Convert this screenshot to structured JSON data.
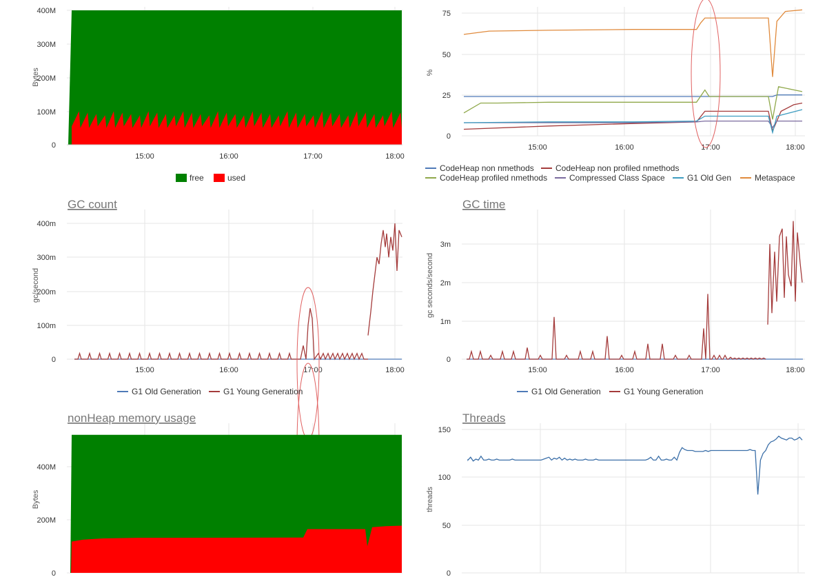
{
  "charts": [
    {
      "id": "heap",
      "title": "",
      "ylabel": "Bytes",
      "yticks": [
        "0",
        "100M",
        "200M",
        "300M",
        "400M"
      ],
      "xticks": [
        "15:00",
        "16:00",
        "17:00",
        "18:00"
      ],
      "legend": [
        {
          "name": "free",
          "color": "#008000"
        },
        {
          "name": "used",
          "color": "#ff0000"
        }
      ]
    },
    {
      "id": "pools",
      "title": "",
      "ylabel": "%",
      "yticks": [
        "0",
        "25",
        "50",
        "75"
      ],
      "xticks": [
        "15:00",
        "16:00",
        "17:00",
        "18:00"
      ],
      "legend": [
        {
          "name": "CodeHeap non nmethods",
          "color": "#4e79b7"
        },
        {
          "name": "CodeHeap non profiled nmethods",
          "color": "#a43b3b"
        },
        {
          "name": "CodeHeap profiled nmethods",
          "color": "#8fa84a"
        },
        {
          "name": "Compressed Class Space",
          "color": "#7a6a9e"
        },
        {
          "name": "G1 Old Gen",
          "color": "#3d9cc0"
        },
        {
          "name": "Metaspace",
          "color": "#e08a3c"
        }
      ]
    },
    {
      "id": "gccount",
      "title": "GC count",
      "ylabel": "gc/second",
      "yticks": [
        "0",
        "100m",
        "200m",
        "300m",
        "400m"
      ],
      "xticks": [
        "15:00",
        "16:00",
        "17:00",
        "18:00"
      ],
      "legend": [
        {
          "name": "G1 Old Generation",
          "color": "#4e79b7"
        },
        {
          "name": "G1 Young Generation",
          "color": "#a43b3b"
        }
      ]
    },
    {
      "id": "gctime",
      "title": "GC time",
      "ylabel": "gc seconds/second",
      "yticks": [
        "0",
        "1m",
        "2m",
        "3m"
      ],
      "xticks": [
        "15:00",
        "16:00",
        "17:00",
        "18:00"
      ],
      "legend": [
        {
          "name": "G1 Old Generation",
          "color": "#4e79b7"
        },
        {
          "name": "G1 Young Generation",
          "color": "#a43b3b"
        }
      ]
    },
    {
      "id": "nonheap",
      "title": "nonHeap memory usage",
      "ylabel": "Bytes",
      "yticks": [
        "0",
        "200M",
        "400M"
      ],
      "xticks": [],
      "legend": []
    },
    {
      "id": "threads",
      "title": "Threads",
      "ylabel": "threads",
      "yticks": [
        "0",
        "50",
        "100",
        "150"
      ],
      "xticks": [],
      "legend": []
    }
  ],
  "chart_data": [
    {
      "type": "area",
      "ylabel": "Bytes",
      "ylim": [
        0,
        400000000
      ],
      "x_range": [
        "14:07",
        "18:05"
      ],
      "series": [
        {
          "name": "free",
          "color": "#008000",
          "total": 400000000
        },
        {
          "name": "used",
          "color": "#ff0000",
          "pattern": "sawtooth",
          "min": 50000000,
          "max": 100000000
        }
      ]
    },
    {
      "type": "line",
      "ylabel": "%",
      "ylim": [
        0,
        80
      ],
      "series": [
        {
          "name": "CodeHeap non nmethods",
          "color": "#4e79b7",
          "points": [
            [
              0,
              24
            ],
            [
              1,
              24
            ],
            [
              2,
              24
            ],
            [
              3,
              24
            ],
            [
              3.65,
              24
            ],
            [
              3.7,
              25
            ],
            [
              4,
              25
            ]
          ]
        },
        {
          "name": "CodeHeap non profiled nmethods",
          "color": "#a43b3b",
          "points": [
            [
              0,
              4
            ],
            [
              1,
              6
            ],
            [
              2,
              7.5
            ],
            [
              2.75,
              8.5
            ],
            [
              2.85,
              15
            ],
            [
              3.6,
              15
            ],
            [
              3.65,
              3
            ],
            [
              3.75,
              15
            ],
            [
              3.9,
              19
            ],
            [
              4,
              20
            ]
          ]
        },
        {
          "name": "CodeHeap profiled nmethods",
          "color": "#8fa84a",
          "points": [
            [
              0,
              14
            ],
            [
              0.2,
              20
            ],
            [
              0.4,
              20
            ],
            [
              1,
              20.5
            ],
            [
              2,
              20.5
            ],
            [
              2.75,
              20.5
            ],
            [
              2.85,
              28
            ],
            [
              2.9,
              24
            ],
            [
              3.6,
              24
            ],
            [
              3.65,
              10
            ],
            [
              3.72,
              30
            ],
            [
              4,
              27
            ]
          ]
        },
        {
          "name": "Compressed Class Space",
          "color": "#7a6a9e",
          "points": [
            [
              0,
              8
            ],
            [
              1,
              8
            ],
            [
              2,
              8
            ],
            [
              2.75,
              8.5
            ],
            [
              2.85,
              9
            ],
            [
              3.6,
              9
            ],
            [
              3.65,
              5
            ],
            [
              3.7,
              9
            ],
            [
              4,
              9
            ]
          ]
        },
        {
          "name": "G1 Old Gen",
          "color": "#3d9cc0",
          "points": [
            [
              0,
              8
            ],
            [
              1,
              8.5
            ],
            [
              2,
              8.5
            ],
            [
              2.75,
              9
            ],
            [
              2.85,
              12
            ],
            [
              3.6,
              12
            ],
            [
              3.65,
              2
            ],
            [
              3.7,
              12
            ],
            [
              4,
              16
            ]
          ]
        },
        {
          "name": "Metaspace",
          "color": "#e08a3c",
          "points": [
            [
              0,
              62
            ],
            [
              0.3,
              64
            ],
            [
              1,
              64.5
            ],
            [
              2,
              65
            ],
            [
              2.75,
              65
            ],
            [
              2.8,
              69
            ],
            [
              2.85,
              72
            ],
            [
              3.6,
              72
            ],
            [
              3.65,
              36
            ],
            [
              3.7,
              70
            ],
            [
              3.8,
              76
            ],
            [
              4,
              77
            ]
          ]
        }
      ]
    },
    {
      "type": "line",
      "ylabel": "gc/second",
      "ylim": [
        0,
        0.4
      ],
      "series": [
        {
          "name": "G1 Old Generation",
          "color": "#4e79b7",
          "pattern": "flat",
          "value": 0
        },
        {
          "name": "G1 Young Generation",
          "color": "#a43b3b",
          "pattern": "sparse-spikes",
          "spike": 0.017,
          "burst_at": "16:55",
          "burst_peak": 0.15,
          "tail_peak": 0.4
        }
      ]
    },
    {
      "type": "line",
      "ylabel": "gc seconds/second",
      "ylim": [
        0,
        0.0036
      ],
      "series": [
        {
          "name": "G1 Old Generation",
          "color": "#4e79b7",
          "pattern": "flat",
          "value": 0
        },
        {
          "name": "G1 Young Generation",
          "color": "#a43b3b",
          "pattern": "sparse-spikes",
          "spike": 0.0003,
          "peak_at_1510": 0.0011,
          "peak_at_1655": 0.0017,
          "tail_peak": 0.0036
        }
      ]
    },
    {
      "type": "area",
      "ylabel": "Bytes",
      "ylim": [
        0,
        500000000
      ],
      "series": [
        {
          "name": "free",
          "color": "#008000",
          "total": 520000000
        },
        {
          "name": "used",
          "color": "#ff0000",
          "start": 118000000,
          "steady": 132000000,
          "after_step": 165000000,
          "end": 180000000
        }
      ]
    },
    {
      "type": "line",
      "ylabel": "threads",
      "ylim": [
        0,
        150
      ],
      "series": [
        {
          "name": "threads",
          "color": "#3b6fa8",
          "base": 118,
          "after_step": 128,
          "dip": 82,
          "end": 140
        }
      ]
    }
  ]
}
